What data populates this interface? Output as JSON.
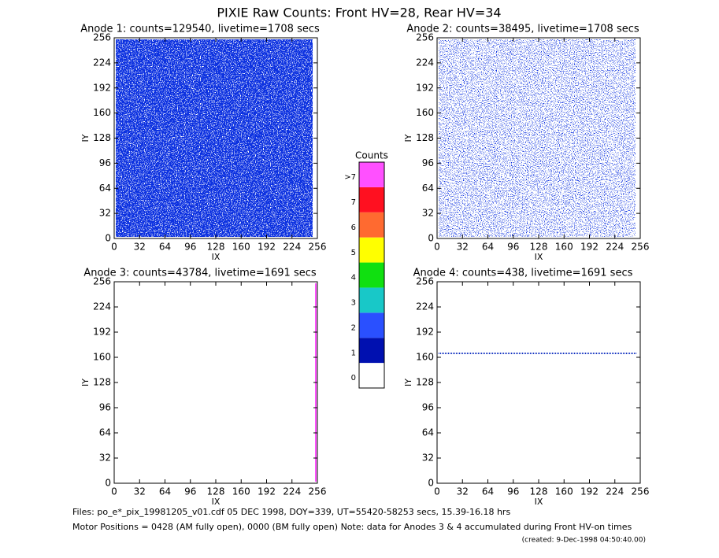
{
  "title": "PIXIE Raw Counts:  Front HV=28, Rear HV=34",
  "chart_data": [
    {
      "type": "heatmap",
      "title": "Anode 1: counts=129540, livetime=1708 secs",
      "x_label": "IX",
      "y_label": "IY",
      "xlim": [
        0,
        256
      ],
      "ylim": [
        0,
        256
      ],
      "xticks": [
        0,
        32,
        64,
        96,
        128,
        160,
        192,
        224,
        256
      ],
      "yticks": [
        0,
        32,
        64,
        96,
        128,
        160,
        192,
        224,
        256
      ]
    },
    {
      "type": "heatmap",
      "title": "Anode 2: counts=38495, livetime=1708 secs",
      "x_label": "IX",
      "y_label": "IY",
      "xlim": [
        0,
        256
      ],
      "ylim": [
        0,
        256
      ],
      "xticks": [
        0,
        32,
        64,
        96,
        128,
        160,
        192,
        224,
        256
      ],
      "yticks": [
        0,
        32,
        64,
        96,
        128,
        160,
        192,
        224,
        256
      ]
    },
    {
      "type": "heatmap",
      "title": "Anode 3: counts=43784, livetime=1691 secs",
      "x_label": "IX",
      "y_label": "IY",
      "xlim": [
        0,
        256
      ],
      "ylim": [
        0,
        256
      ],
      "xticks": [
        0,
        32,
        64,
        96,
        128,
        160,
        192,
        224,
        256
      ],
      "yticks": [
        0,
        32,
        64,
        96,
        128,
        160,
        192,
        224,
        256
      ]
    },
    {
      "type": "heatmap",
      "title": "Anode 4: counts=438, livetime=1691 secs",
      "x_label": "IX",
      "y_label": "IY",
      "xlim": [
        0,
        256
      ],
      "ylim": [
        0,
        256
      ],
      "xticks": [
        0,
        32,
        64,
        96,
        128,
        160,
        192,
        224,
        256
      ],
      "yticks": [
        0,
        32,
        64,
        96,
        128,
        160,
        192,
        224,
        256
      ]
    }
  ],
  "colorbar": {
    "title": "Counts",
    "labels": [
      "0",
      "1",
      "2",
      "3",
      "4",
      "5",
      "6",
      "7",
      ">7"
    ],
    "colors": [
      "#ffffff",
      "#0010b0",
      "#2a50ff",
      "#18c8c8",
      "#10e010",
      "#ffff00",
      "#ff6a30",
      "#ff1020",
      "#ff50ff"
    ]
  },
  "footer": {
    "files": "Files: po_e*_pix_19981205_v01.cdf    05 DEC 1998, DOY=339, UT=55420-58253 secs, 15.39-16.18 hrs",
    "motor": "Motor Positions = 0428 (AM fully open), 0000 (BM fully open)    Note: data for Anodes 3 & 4 accumulated during Front HV-on times",
    "created": "(created:  9-Dec-1998 04:50:40.00)"
  }
}
